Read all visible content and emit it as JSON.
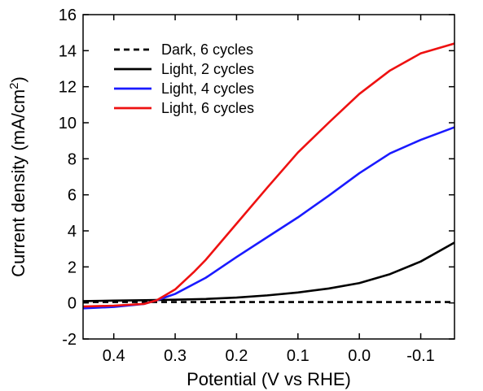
{
  "chart_data": {
    "type": "line",
    "xlabel": "Potential (V vs RHE)",
    "ylabel": "Current density (mA/cm",
    "ylabel_superscript": "2",
    "ylabel_suffix": ")",
    "xlim": [
      0.45,
      -0.155
    ],
    "ylim": [
      -2,
      16
    ],
    "x_reversed": true,
    "xticks": [
      0.4,
      0.3,
      0.2,
      0.1,
      0.0,
      -0.1
    ],
    "xtick_labels": [
      "0.4",
      "0.3",
      "0.2",
      "0.1",
      "0.0",
      "-0.1"
    ],
    "yticks": [
      -2,
      0,
      2,
      4,
      6,
      8,
      10,
      12,
      14,
      16
    ],
    "ytick_labels": [
      "-2",
      "0",
      "2",
      "4",
      "6",
      "8",
      "10",
      "12",
      "14",
      "16"
    ],
    "grid": false,
    "legend_position": "top-left",
    "series": [
      {
        "name": "Dark, 6 cycles",
        "color": "#000000",
        "dash": "dashed",
        "x": [
          0.45,
          0.4,
          0.3,
          0.2,
          0.1,
          0.0,
          -0.1,
          -0.155
        ],
        "y": [
          0.05,
          0.05,
          0.05,
          0.05,
          0.05,
          0.05,
          0.05,
          0.05
        ]
      },
      {
        "name": "Light, 2 cycles",
        "color": "#000000",
        "dash": "solid",
        "x": [
          0.45,
          0.4,
          0.35,
          0.3,
          0.25,
          0.2,
          0.15,
          0.1,
          0.05,
          0.0,
          -0.05,
          -0.1,
          -0.155
        ],
        "y": [
          0.1,
          0.13,
          0.15,
          0.18,
          0.22,
          0.3,
          0.42,
          0.58,
          0.8,
          1.1,
          1.6,
          2.3,
          3.35
        ]
      },
      {
        "name": "Light, 4 cycles",
        "color": "#1a1aff",
        "dash": "solid",
        "x": [
          0.45,
          0.4,
          0.35,
          0.33,
          0.3,
          0.25,
          0.2,
          0.15,
          0.1,
          0.05,
          0.0,
          -0.05,
          -0.1,
          -0.155
        ],
        "y": [
          -0.3,
          -0.22,
          -0.05,
          0.15,
          0.5,
          1.4,
          2.55,
          3.65,
          4.75,
          5.95,
          7.2,
          8.3,
          9.05,
          9.75
        ]
      },
      {
        "name": "Light, 6 cycles",
        "color": "#ee1111",
        "dash": "solid",
        "x": [
          0.45,
          0.4,
          0.35,
          0.33,
          0.3,
          0.27,
          0.25,
          0.2,
          0.15,
          0.1,
          0.05,
          0.0,
          -0.05,
          -0.1,
          -0.155
        ],
        "y": [
          -0.2,
          -0.15,
          -0.05,
          0.15,
          0.75,
          1.7,
          2.4,
          4.4,
          6.4,
          8.35,
          10.0,
          11.6,
          12.9,
          13.85,
          14.4
        ]
      }
    ]
  }
}
